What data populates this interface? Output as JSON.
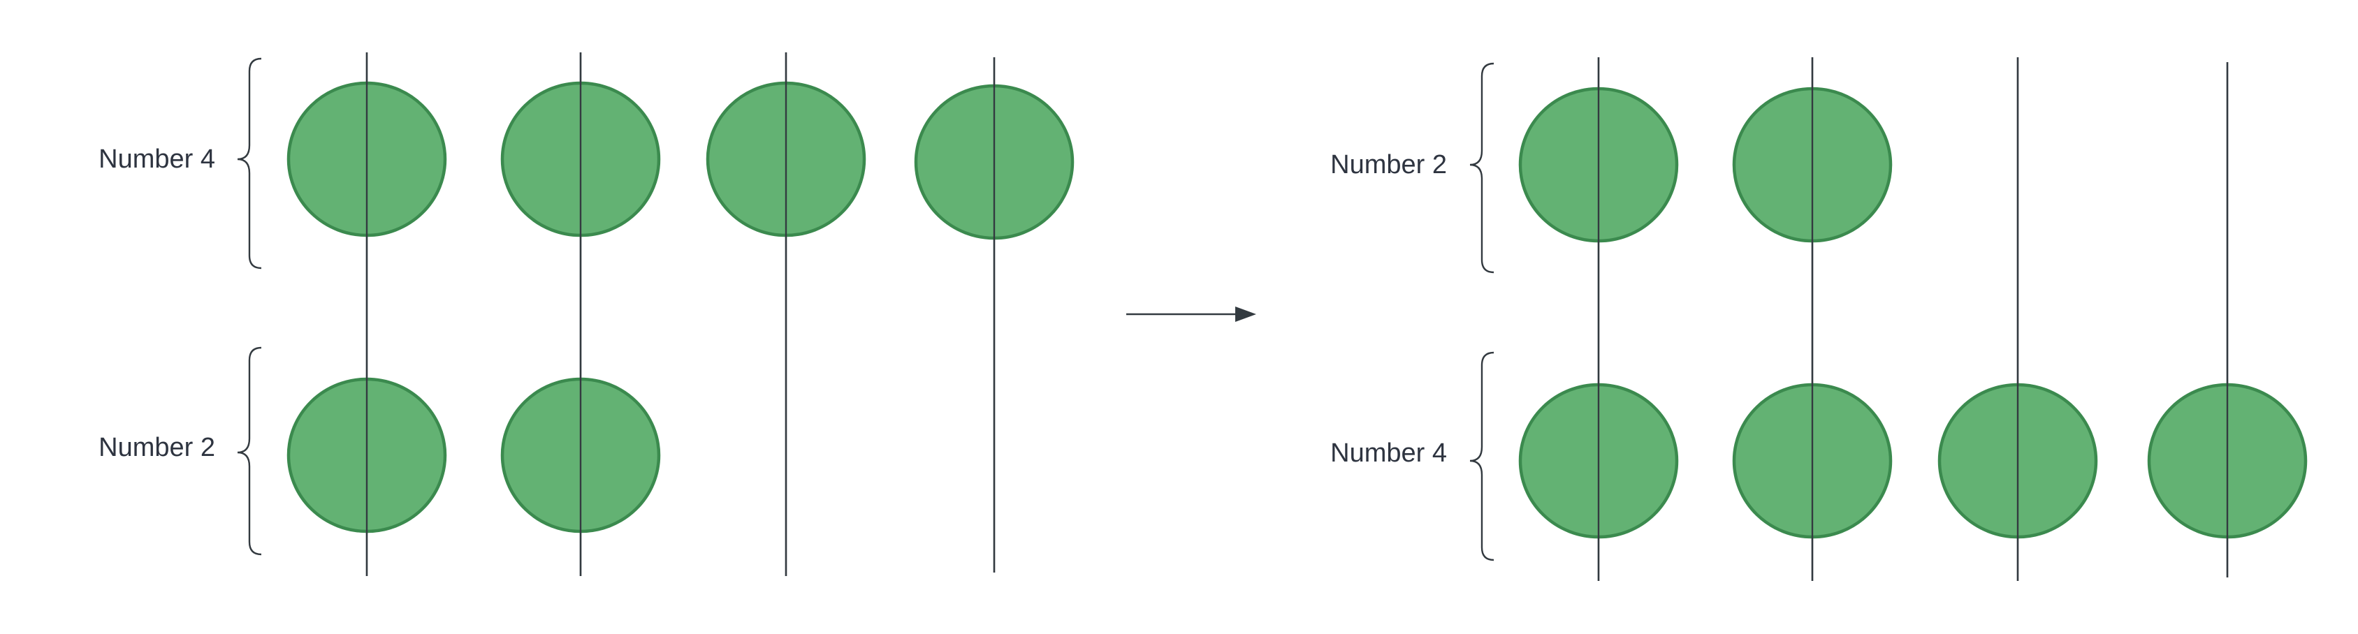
{
  "diagram": {
    "arrow": "right-arrow",
    "left": {
      "groups": [
        {
          "label": "Number 4",
          "beads": 4
        },
        {
          "label": "Number 2",
          "beads": 2
        }
      ]
    },
    "right": {
      "groups": [
        {
          "label": "Number 2",
          "beads": 2
        },
        {
          "label": "Number 4",
          "beads": 4
        }
      ]
    }
  }
}
